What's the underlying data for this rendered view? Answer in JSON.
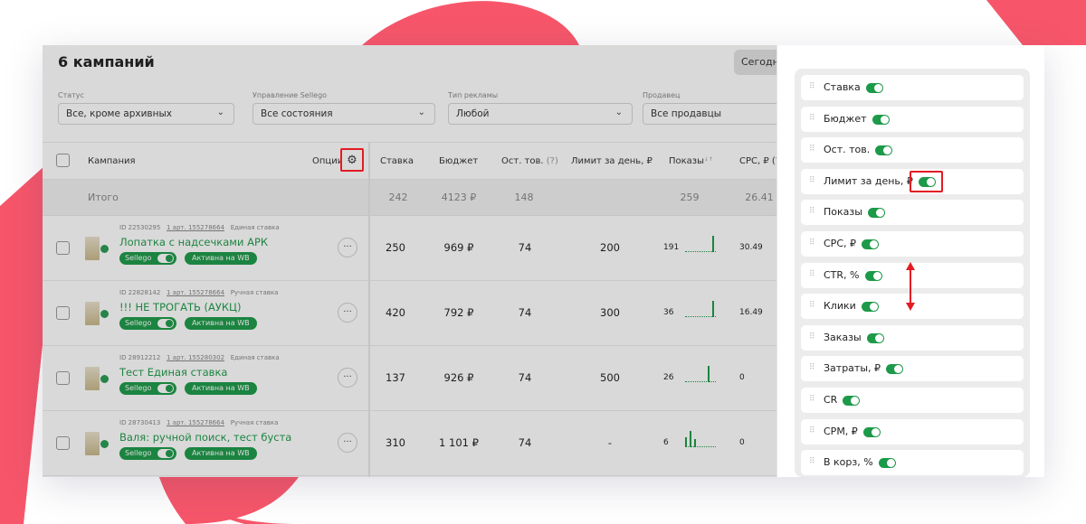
{
  "colors": {
    "accent_green": "#1d9a49",
    "highlight_red": "#e31b23",
    "deco_pink": "#f7566a"
  },
  "header": {
    "title": "6 кампаний",
    "today_button": "Сегодня"
  },
  "filters": [
    {
      "label": "Статус",
      "value": "Все, кроме архивных"
    },
    {
      "label": "Управление Sellego",
      "value": "Все состояния"
    },
    {
      "label": "Тип рекламы",
      "value": "Любой"
    },
    {
      "label": "Продавец",
      "value": "Все продавцы"
    }
  ],
  "table": {
    "columns": {
      "campaign": "Кампания",
      "options": "Опции",
      "bid": "Ставка",
      "budget": "Бюджет",
      "stock": "Ост. тов.",
      "stock_hint": "(?)",
      "daily_limit": "Лимит за день, ₽",
      "impressions": "Показы",
      "cpc": "CPC, ₽ (?"
    },
    "total": {
      "label": "Итого",
      "bid": "242",
      "budget": "4123 ₽",
      "stock": "148",
      "impressions": "259",
      "cpc": "26.41"
    },
    "rows": [
      {
        "id": "ID 22530295",
        "art": "1 арт. 155278664",
        "type": "Единая ставка",
        "name": "Лопатка с надсечками АРК",
        "sellego": "Sellego",
        "wb_status": "Активна на WB",
        "bid": "250",
        "budget": "969 ₽",
        "stock": "74",
        "limit": "200",
        "impressions": "191",
        "cpc": "30.49",
        "spark": [
          0,
          0,
          0,
          0,
          0,
          0,
          1.0
        ]
      },
      {
        "id": "ID 22828142",
        "art": "1 арт. 155278664",
        "type": "Ручная ставка",
        "name": "!!! НЕ ТРОГАТЬ (АУКЦ)",
        "sellego": "Sellego",
        "wb_status": "Активна на WB",
        "bid": "420",
        "budget": "792 ₽",
        "stock": "74",
        "limit": "300",
        "impressions": "36",
        "cpc": "16.49",
        "spark": [
          0,
          0,
          0,
          0,
          0,
          0,
          1.0
        ]
      },
      {
        "id": "ID 28912212",
        "art": "1 арт. 155280302",
        "type": "Единая ставка",
        "name": "Тест Единая ставка",
        "sellego": "Sellego",
        "wb_status": "Активна на WB",
        "bid": "137",
        "budget": "926 ₽",
        "stock": "74",
        "limit": "500",
        "impressions": "26",
        "cpc": "0",
        "spark": [
          0,
          0,
          0,
          0,
          0,
          1.0,
          0
        ]
      },
      {
        "id": "ID 28730413",
        "art": "1 арт. 155278664",
        "type": "Ручная ставка",
        "name": "Валя: ручной поиск, тест буста",
        "sellego": "Sellego",
        "wb_status": "Активна на WB",
        "bid": "310",
        "budget": "1 101 ₽",
        "stock": "74",
        "limit": "-",
        "impressions": "6",
        "cpc": "0",
        "spark": [
          0.6,
          1.0,
          0.5,
          0,
          0,
          0,
          0
        ]
      }
    ],
    "more_label": "···"
  },
  "column_panel": {
    "items": [
      {
        "label": "Ставка",
        "enabled": true
      },
      {
        "label": "Бюджет",
        "enabled": true
      },
      {
        "label": "Ост. тов.",
        "enabled": true
      },
      {
        "label": "Лимит за день, ₽",
        "enabled": true
      },
      {
        "label": "Показы",
        "enabled": true
      },
      {
        "label": "CPC, ₽",
        "enabled": true
      },
      {
        "label": "CTR, %",
        "enabled": true
      },
      {
        "label": "Клики",
        "enabled": true
      },
      {
        "label": "Заказы",
        "enabled": true
      },
      {
        "label": "Затраты, ₽",
        "enabled": true
      },
      {
        "label": "CR",
        "enabled": true
      },
      {
        "label": "CPM, ₽",
        "enabled": true
      },
      {
        "label": "В корз, %",
        "enabled": true
      }
    ]
  }
}
